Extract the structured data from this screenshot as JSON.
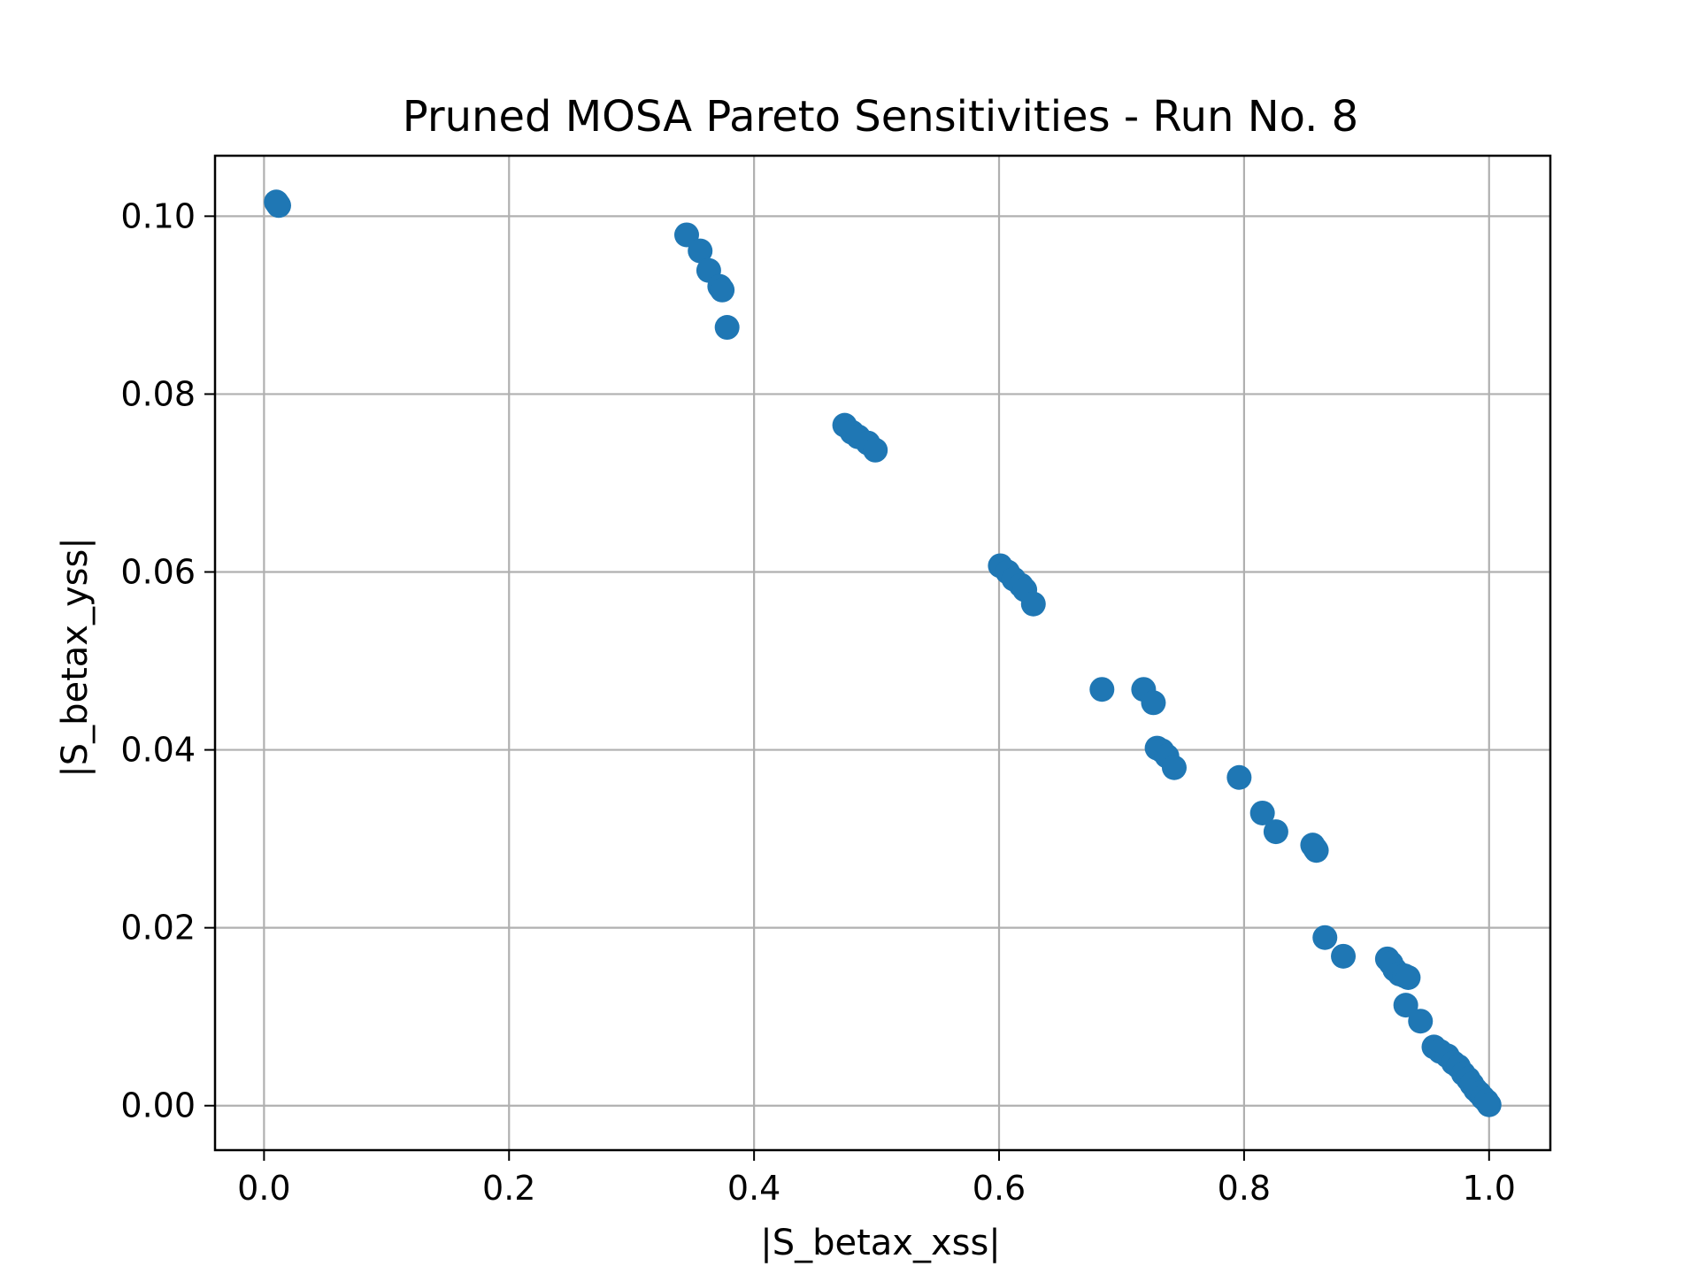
{
  "chart_data": {
    "type": "scatter",
    "title": "Pruned MOSA Pareto Sensitivities - Run No. 8",
    "xlabel": "|S_betax_xss|",
    "ylabel": "|S_betax_yss|",
    "xlim": [
      -0.04,
      1.05
    ],
    "ylim": [
      -0.005,
      0.1068
    ],
    "xticks": [
      0.0,
      0.2,
      0.4,
      0.6,
      0.8,
      1.0
    ],
    "xtick_labels": [
      "0.0",
      "0.2",
      "0.4",
      "0.6",
      "0.8",
      "1.0"
    ],
    "yticks": [
      0.0,
      0.02,
      0.04,
      0.06,
      0.08,
      0.1
    ],
    "ytick_labels": [
      "0.00",
      "0.02",
      "0.04",
      "0.06",
      "0.08",
      "0.10"
    ],
    "grid": true,
    "legend": "none",
    "marker_color": "#1f77b4",
    "series": [
      {
        "points": [
          [
            0.01,
            0.1016
          ],
          [
            0.011,
            0.1014
          ],
          [
            0.012,
            0.1012
          ],
          [
            0.345,
            0.0979
          ],
          [
            0.356,
            0.0961
          ],
          [
            0.363,
            0.0939
          ],
          [
            0.372,
            0.0921
          ],
          [
            0.374,
            0.0917
          ],
          [
            0.378,
            0.0875
          ],
          [
            0.474,
            0.0765
          ],
          [
            0.48,
            0.0757
          ],
          [
            0.485,
            0.0752
          ],
          [
            0.493,
            0.0745
          ],
          [
            0.499,
            0.0737
          ],
          [
            0.601,
            0.0607
          ],
          [
            0.607,
            0.06
          ],
          [
            0.612,
            0.0592
          ],
          [
            0.618,
            0.0585
          ],
          [
            0.621,
            0.058
          ],
          [
            0.628,
            0.0564
          ],
          [
            0.684,
            0.0468
          ],
          [
            0.718,
            0.0468
          ],
          [
            0.726,
            0.0453
          ],
          [
            0.729,
            0.0402
          ],
          [
            0.733,
            0.0399
          ],
          [
            0.737,
            0.0393
          ],
          [
            0.743,
            0.038
          ],
          [
            0.796,
            0.0369
          ],
          [
            0.815,
            0.0329
          ],
          [
            0.826,
            0.0308
          ],
          [
            0.856,
            0.0293
          ],
          [
            0.858,
            0.0289
          ],
          [
            0.859,
            0.0287
          ],
          [
            0.866,
            0.0189
          ],
          [
            0.881,
            0.0168
          ],
          [
            0.917,
            0.0165
          ],
          [
            0.92,
            0.016
          ],
          [
            0.923,
            0.0153
          ],
          [
            0.927,
            0.0148
          ],
          [
            0.931,
            0.0146
          ],
          [
            0.934,
            0.0144
          ],
          [
            0.932,
            0.0113
          ],
          [
            0.944,
            0.0095
          ],
          [
            0.955,
            0.0066
          ],
          [
            0.96,
            0.0061
          ],
          [
            0.966,
            0.0056
          ],
          [
            0.971,
            0.0048
          ],
          [
            0.975,
            0.0044
          ],
          [
            0.979,
            0.0036
          ],
          [
            0.983,
            0.003
          ],
          [
            0.986,
            0.0024
          ],
          [
            0.989,
            0.0018
          ],
          [
            0.992,
            0.0014
          ],
          [
            0.995,
            0.0009
          ],
          [
            0.998,
            0.0005
          ],
          [
            1.0,
            0.0001
          ]
        ]
      }
    ]
  }
}
